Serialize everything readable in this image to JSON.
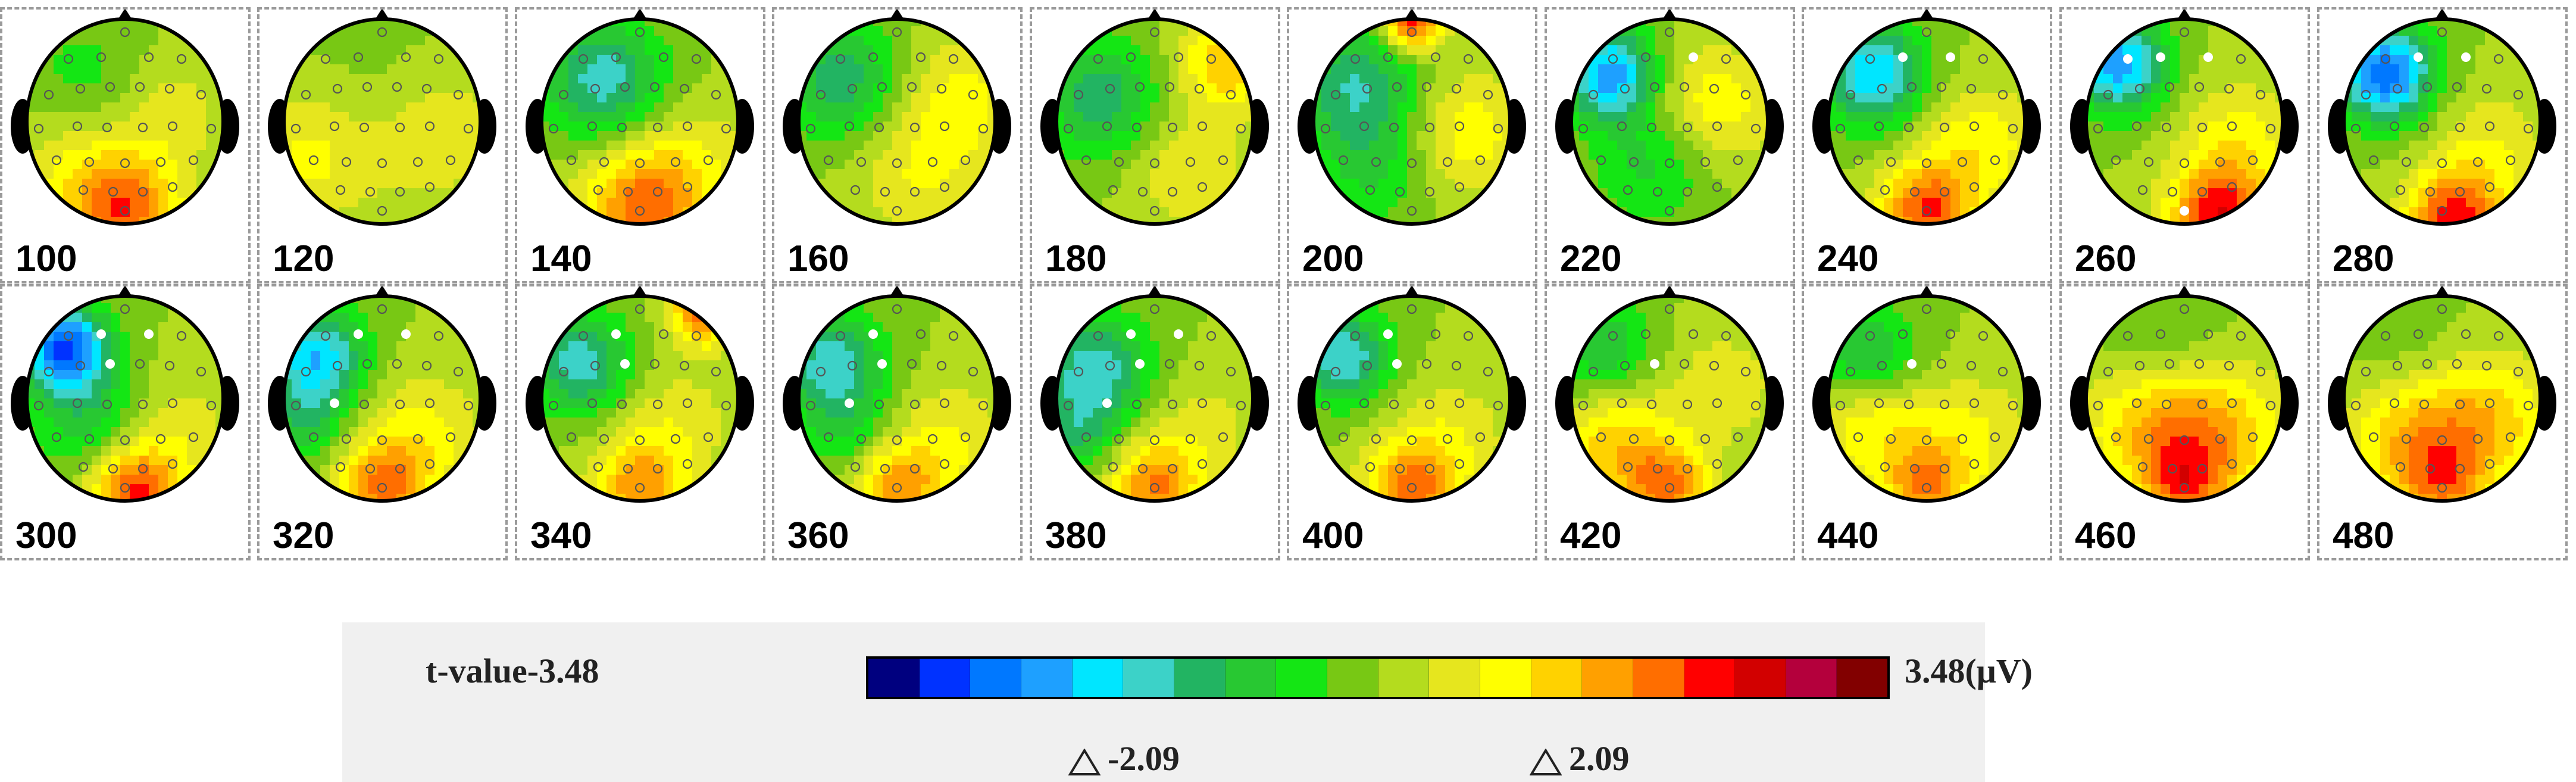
{
  "timepoints": [
    {
      "label": "100",
      "sig": []
    },
    {
      "label": "120",
      "sig": []
    },
    {
      "label": "140",
      "sig": []
    },
    {
      "label": "160",
      "sig": []
    },
    {
      "label": "180",
      "sig": []
    },
    {
      "label": "200",
      "sig": []
    },
    {
      "label": "220",
      "sig": [
        3
      ]
    },
    {
      "label": "240",
      "sig": [
        2,
        3
      ]
    },
    {
      "label": "260",
      "sig": [
        1,
        2,
        3,
        26
      ]
    },
    {
      "label": "280",
      "sig": [
        2,
        3
      ]
    },
    {
      "label": "300",
      "sig": [
        2,
        3,
        7
      ]
    },
    {
      "label": "320",
      "sig": [
        2,
        3,
        12
      ]
    },
    {
      "label": "340",
      "sig": [
        2,
        7
      ]
    },
    {
      "label": "360",
      "sig": [
        2,
        7,
        12
      ]
    },
    {
      "label": "380",
      "sig": [
        2,
        3,
        7,
        12
      ]
    },
    {
      "label": "400",
      "sig": [
        2,
        7
      ]
    },
    {
      "label": "420",
      "sig": [
        7
      ]
    },
    {
      "label": "440",
      "sig": [
        7
      ]
    },
    {
      "label": "460",
      "sig": []
    },
    {
      "label": "480",
      "sig": []
    }
  ],
  "legend": {
    "min_label": "t-value-3.48",
    "max_label": "3.48(μV)",
    "threshold_neg": "-2.09",
    "threshold_pos": "2.09",
    "colors": [
      "#00007f",
      "#0032ff",
      "#0078ff",
      "#1ea0ff",
      "#00e6ff",
      "#3cd2c8",
      "#22b462",
      "#28c832",
      "#14e614",
      "#78c814",
      "#b4dc1e",
      "#e6e61e",
      "#ffff00",
      "#ffd200",
      "#ffa000",
      "#ff6e00",
      "#ff0000",
      "#d20000",
      "#b4003c",
      "#820000"
    ]
  }
}
